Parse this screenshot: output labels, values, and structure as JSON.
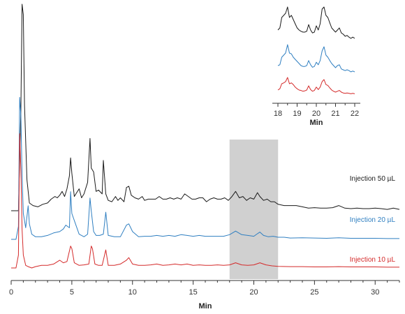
{
  "chart_data": {
    "type": "line",
    "title": "",
    "xlabel": "Min",
    "ylabel": "",
    "xlim": [
      0,
      32
    ],
    "xticks": [
      0,
      5,
      10,
      15,
      20,
      25,
      30
    ],
    "grid": false,
    "highlight_region": [
      18,
      22
    ],
    "series": [
      {
        "name": "Injection 50 µL",
        "color": "#1a1a1a",
        "offset": 0,
        "x": [
          0.0,
          0.3,
          0.6,
          0.8,
          0.9,
          1.0,
          1.1,
          1.3,
          1.5,
          1.8,
          2.2,
          2.6,
          3.0,
          3.3,
          3.6,
          3.8,
          4.0,
          4.2,
          4.4,
          4.6,
          4.8,
          4.9,
          5.0,
          5.2,
          5.4,
          5.6,
          5.8,
          6.0,
          6.3,
          6.5,
          6.6,
          6.8,
          7.0,
          7.2,
          7.5,
          7.6,
          7.8,
          8.0,
          8.3,
          8.6,
          8.8,
          9.0,
          9.3,
          9.5,
          9.7,
          9.9,
          10.2,
          10.5,
          10.8,
          11.0,
          11.3,
          11.6,
          11.9,
          12.2,
          12.5,
          12.8,
          13.1,
          13.4,
          13.7,
          14.0,
          14.3,
          14.6,
          14.9,
          15.2,
          15.5,
          15.8,
          16.1,
          16.4,
          16.7,
          17.0,
          17.3,
          17.6,
          17.9,
          18.2,
          18.5,
          18.8,
          19.1,
          19.4,
          19.7,
          20.0,
          20.3,
          20.5,
          20.8,
          21.1,
          21.4,
          21.7,
          22.0,
          22.5,
          23.0,
          23.5,
          24.0,
          24.5,
          25.0,
          25.5,
          26.0,
          26.5,
          27.0,
          27.5,
          28.0,
          28.5,
          29.0,
          29.5,
          30.0,
          30.5,
          31.0,
          31.5,
          32.0
        ],
        "y": [
          0.0,
          0.0,
          0.0,
          3.9,
          8.0,
          7.6,
          4.1,
          1.2,
          0.3,
          0.2,
          0.15,
          0.25,
          0.3,
          0.45,
          0.55,
          0.5,
          0.6,
          0.75,
          0.55,
          0.85,
          1.35,
          2.05,
          1.45,
          0.55,
          0.7,
          0.85,
          0.5,
          0.65,
          1.1,
          2.8,
          1.65,
          1.5,
          0.75,
          0.8,
          0.65,
          1.95,
          0.65,
          0.4,
          0.35,
          0.55,
          0.4,
          0.5,
          0.35,
          0.9,
          0.95,
          0.6,
          0.5,
          0.45,
          0.55,
          0.4,
          0.45,
          0.45,
          0.45,
          0.55,
          0.45,
          0.45,
          0.5,
          0.45,
          0.5,
          0.45,
          0.65,
          0.55,
          0.45,
          0.45,
          0.5,
          0.5,
          0.35,
          0.45,
          0.5,
          0.45,
          0.45,
          0.5,
          0.4,
          0.55,
          0.75,
          0.5,
          0.55,
          0.4,
          0.5,
          0.45,
          0.7,
          0.55,
          0.4,
          0.45,
          0.35,
          0.35,
          0.25,
          0.2,
          0.2,
          0.2,
          0.15,
          0.1,
          0.12,
          0.1,
          0.1,
          0.12,
          0.2,
          0.1,
          0.08,
          0.1,
          0.08,
          0.08,
          0.1,
          0.08,
          0.05,
          0.1,
          0.05
        ]
      },
      {
        "name": "Injection 20 µL",
        "color": "#2f7fc1",
        "offset": 1,
        "x": [
          0.0,
          0.4,
          0.6,
          0.7,
          0.8,
          0.9,
          1.0,
          1.2,
          1.4,
          1.5,
          1.7,
          2.0,
          2.5,
          3.0,
          3.5,
          4.0,
          4.3,
          4.5,
          4.8,
          4.9,
          5.0,
          5.3,
          5.6,
          6.0,
          6.3,
          6.5,
          6.6,
          6.8,
          7.0,
          7.3,
          7.6,
          7.8,
          8.0,
          8.5,
          9.0,
          9.5,
          9.7,
          10.0,
          10.5,
          11.0,
          11.5,
          12.0,
          12.5,
          13.0,
          13.5,
          14.0,
          14.5,
          15.0,
          15.5,
          16.0,
          16.5,
          17.0,
          17.5,
          18.0,
          18.5,
          19.0,
          19.5,
          20.0,
          20.3,
          20.5,
          20.8,
          21.2,
          21.6,
          22.0,
          22.5,
          23.0,
          24.0,
          25.0,
          26.0,
          27.0,
          28.0,
          29.0,
          30.0,
          31.0,
          32.0
        ],
        "y": [
          0.0,
          0.0,
          0.5,
          5.5,
          4.8,
          2.5,
          1.0,
          0.45,
          1.3,
          0.6,
          0.2,
          0.1,
          0.1,
          0.15,
          0.25,
          0.3,
          0.4,
          0.55,
          0.45,
          1.85,
          1.0,
          0.6,
          0.2,
          0.1,
          0.2,
          1.6,
          1.1,
          0.3,
          0.15,
          0.15,
          0.2,
          1.05,
          0.15,
          0.1,
          0.1,
          0.55,
          0.6,
          0.3,
          0.1,
          0.12,
          0.12,
          0.15,
          0.12,
          0.15,
          0.12,
          0.18,
          0.15,
          0.12,
          0.15,
          0.12,
          0.12,
          0.12,
          0.12,
          0.18,
          0.32,
          0.18,
          0.15,
          0.12,
          0.22,
          0.28,
          0.15,
          0.1,
          0.12,
          0.08,
          0.08,
          0.05,
          0.06,
          0.05,
          0.04,
          0.06,
          0.04,
          0.04,
          0.04,
          0.03,
          0.03
        ]
      },
      {
        "name": "Injection 10 µL",
        "color": "#d42a2a",
        "offset": 2,
        "x": [
          0.0,
          0.4,
          0.6,
          0.7,
          0.8,
          0.9,
          1.0,
          1.2,
          1.4,
          1.7,
          2.0,
          2.5,
          3.0,
          3.5,
          4.0,
          4.3,
          4.6,
          4.9,
          5.0,
          5.2,
          5.6,
          6.0,
          6.4,
          6.6,
          6.7,
          6.9,
          7.2,
          7.5,
          7.8,
          8.0,
          8.5,
          9.0,
          9.5,
          9.7,
          10.0,
          10.5,
          11.0,
          11.5,
          12.0,
          12.5,
          13.0,
          13.5,
          14.0,
          14.5,
          15.0,
          15.5,
          16.0,
          16.5,
          17.0,
          17.5,
          18.0,
          18.5,
          19.0,
          19.5,
          20.0,
          20.5,
          21.0,
          21.5,
          22.0,
          23.0,
          24.0,
          25.0,
          26.0,
          27.0,
          28.0,
          29.0,
          30.0,
          31.0,
          32.0
        ],
        "y": [
          0.0,
          0.0,
          0.5,
          5.2,
          3.8,
          1.5,
          0.5,
          0.1,
          0.05,
          0.0,
          0.05,
          0.1,
          0.1,
          0.15,
          0.3,
          0.2,
          0.25,
          0.85,
          0.75,
          0.2,
          0.1,
          0.12,
          0.15,
          0.85,
          0.75,
          0.15,
          0.1,
          0.1,
          0.7,
          0.1,
          0.1,
          0.15,
          0.3,
          0.4,
          0.15,
          0.1,
          0.1,
          0.12,
          0.15,
          0.1,
          0.12,
          0.15,
          0.12,
          0.15,
          0.1,
          0.12,
          0.1,
          0.1,
          0.12,
          0.1,
          0.12,
          0.2,
          0.12,
          0.1,
          0.12,
          0.2,
          0.12,
          0.08,
          0.06,
          0.05,
          0.05,
          0.04,
          0.04,
          0.05,
          0.04,
          0.04,
          0.04,
          0.03,
          0.03
        ]
      }
    ],
    "inset": {
      "xlabel": "Min",
      "xlim": [
        18,
        22
      ],
      "xticks": [
        18,
        19,
        20,
        21,
        22
      ],
      "series": [
        {
          "name": "Injection 50 µL",
          "color": "#1a1a1a",
          "x": [
            18.0,
            18.1,
            18.2,
            18.3,
            18.4,
            18.5,
            18.6,
            18.7,
            18.8,
            18.9,
            19.0,
            19.1,
            19.2,
            19.3,
            19.4,
            19.5,
            19.6,
            19.7,
            19.8,
            19.9,
            20.0,
            20.1,
            20.2,
            20.3,
            20.4,
            20.5,
            20.6,
            20.7,
            20.8,
            20.9,
            21.0,
            21.1,
            21.2,
            21.3,
            21.4,
            21.5,
            21.6,
            21.7,
            21.8,
            21.9,
            22.0
          ],
          "y": [
            0.45,
            0.5,
            0.75,
            0.8,
            0.85,
            1.0,
            0.75,
            0.8,
            0.7,
            0.6,
            0.5,
            0.45,
            0.42,
            0.4,
            0.4,
            0.42,
            0.58,
            0.45,
            0.38,
            0.4,
            0.55,
            0.45,
            0.6,
            0.95,
            1.0,
            0.8,
            0.75,
            0.62,
            0.5,
            0.45,
            0.4,
            0.45,
            0.5,
            0.38,
            0.35,
            0.3,
            0.32,
            0.28,
            0.25,
            0.28,
            0.25
          ]
        },
        {
          "name": "Injection 20 µL",
          "color": "#2f7fc1",
          "x": [
            18.0,
            18.1,
            18.2,
            18.3,
            18.4,
            18.5,
            18.6,
            18.7,
            18.8,
            18.9,
            19.0,
            19.1,
            19.2,
            19.3,
            19.4,
            19.5,
            19.6,
            19.7,
            19.8,
            19.9,
            20.0,
            20.1,
            20.2,
            20.3,
            20.4,
            20.5,
            20.6,
            20.7,
            20.8,
            20.9,
            21.0,
            21.1,
            21.2,
            21.3,
            21.4,
            21.5,
            21.6,
            21.7,
            21.8,
            21.9,
            22.0
          ],
          "y": [
            0.3,
            0.32,
            0.5,
            0.55,
            0.6,
            0.8,
            0.6,
            0.58,
            0.5,
            0.45,
            0.4,
            0.35,
            0.3,
            0.28,
            0.28,
            0.3,
            0.42,
            0.32,
            0.26,
            0.28,
            0.38,
            0.32,
            0.42,
            0.65,
            0.75,
            0.55,
            0.5,
            0.42,
            0.35,
            0.3,
            0.25,
            0.3,
            0.32,
            0.22,
            0.2,
            0.18,
            0.2,
            0.18,
            0.15,
            0.17,
            0.15
          ]
        },
        {
          "name": "Injection 10 µL",
          "color": "#d42a2a",
          "x": [
            18.0,
            18.1,
            18.2,
            18.3,
            18.4,
            18.5,
            18.6,
            18.7,
            18.8,
            18.9,
            19.0,
            19.1,
            19.2,
            19.3,
            19.4,
            19.5,
            19.6,
            19.7,
            19.8,
            19.9,
            20.0,
            20.1,
            20.2,
            20.3,
            20.4,
            20.5,
            20.6,
            20.7,
            20.8,
            20.9,
            21.0,
            21.1,
            21.2,
            21.3,
            21.4,
            21.5,
            21.6,
            21.7,
            21.8,
            21.9,
            22.0
          ],
          "y": [
            0.15,
            0.18,
            0.3,
            0.32,
            0.35,
            0.45,
            0.3,
            0.32,
            0.28,
            0.22,
            0.18,
            0.15,
            0.14,
            0.12,
            0.13,
            0.15,
            0.25,
            0.16,
            0.12,
            0.14,
            0.22,
            0.16,
            0.22,
            0.35,
            0.4,
            0.28,
            0.26,
            0.2,
            0.15,
            0.12,
            0.1,
            0.12,
            0.14,
            0.1,
            0.08,
            0.07,
            0.08,
            0.07,
            0.06,
            0.07,
            0.06
          ]
        }
      ]
    }
  }
}
